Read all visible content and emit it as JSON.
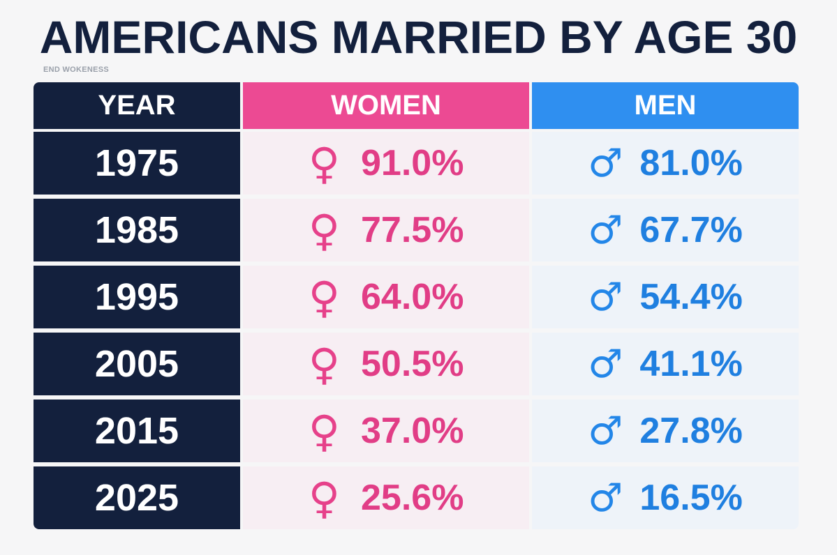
{
  "title": "AMERICANS MARRIED BY AGE 30",
  "watermark": "END WOKENESS",
  "colors": {
    "navy": "#13203d",
    "women": "#ec4a93",
    "men": "#2f8ff0"
  },
  "icons": {
    "women": "♀",
    "men": "♂"
  },
  "chart_data": {
    "type": "table",
    "title": "AMERICANS MARRIED BY AGE 30",
    "columns": [
      "YEAR",
      "WOMEN",
      "MEN"
    ],
    "rows": [
      {
        "year": "1975",
        "women": "91.0%",
        "men": "81.0%"
      },
      {
        "year": "1985",
        "women": "77.5%",
        "men": "67.7%"
      },
      {
        "year": "1995",
        "women": "64.0%",
        "men": "54.4%"
      },
      {
        "year": "2005",
        "women": "50.5%",
        "men": "41.1%"
      },
      {
        "year": "2015",
        "women": "37.0%",
        "men": "27.8%"
      },
      {
        "year": "2025",
        "women": "25.6%",
        "men": "16.5%"
      }
    ]
  }
}
